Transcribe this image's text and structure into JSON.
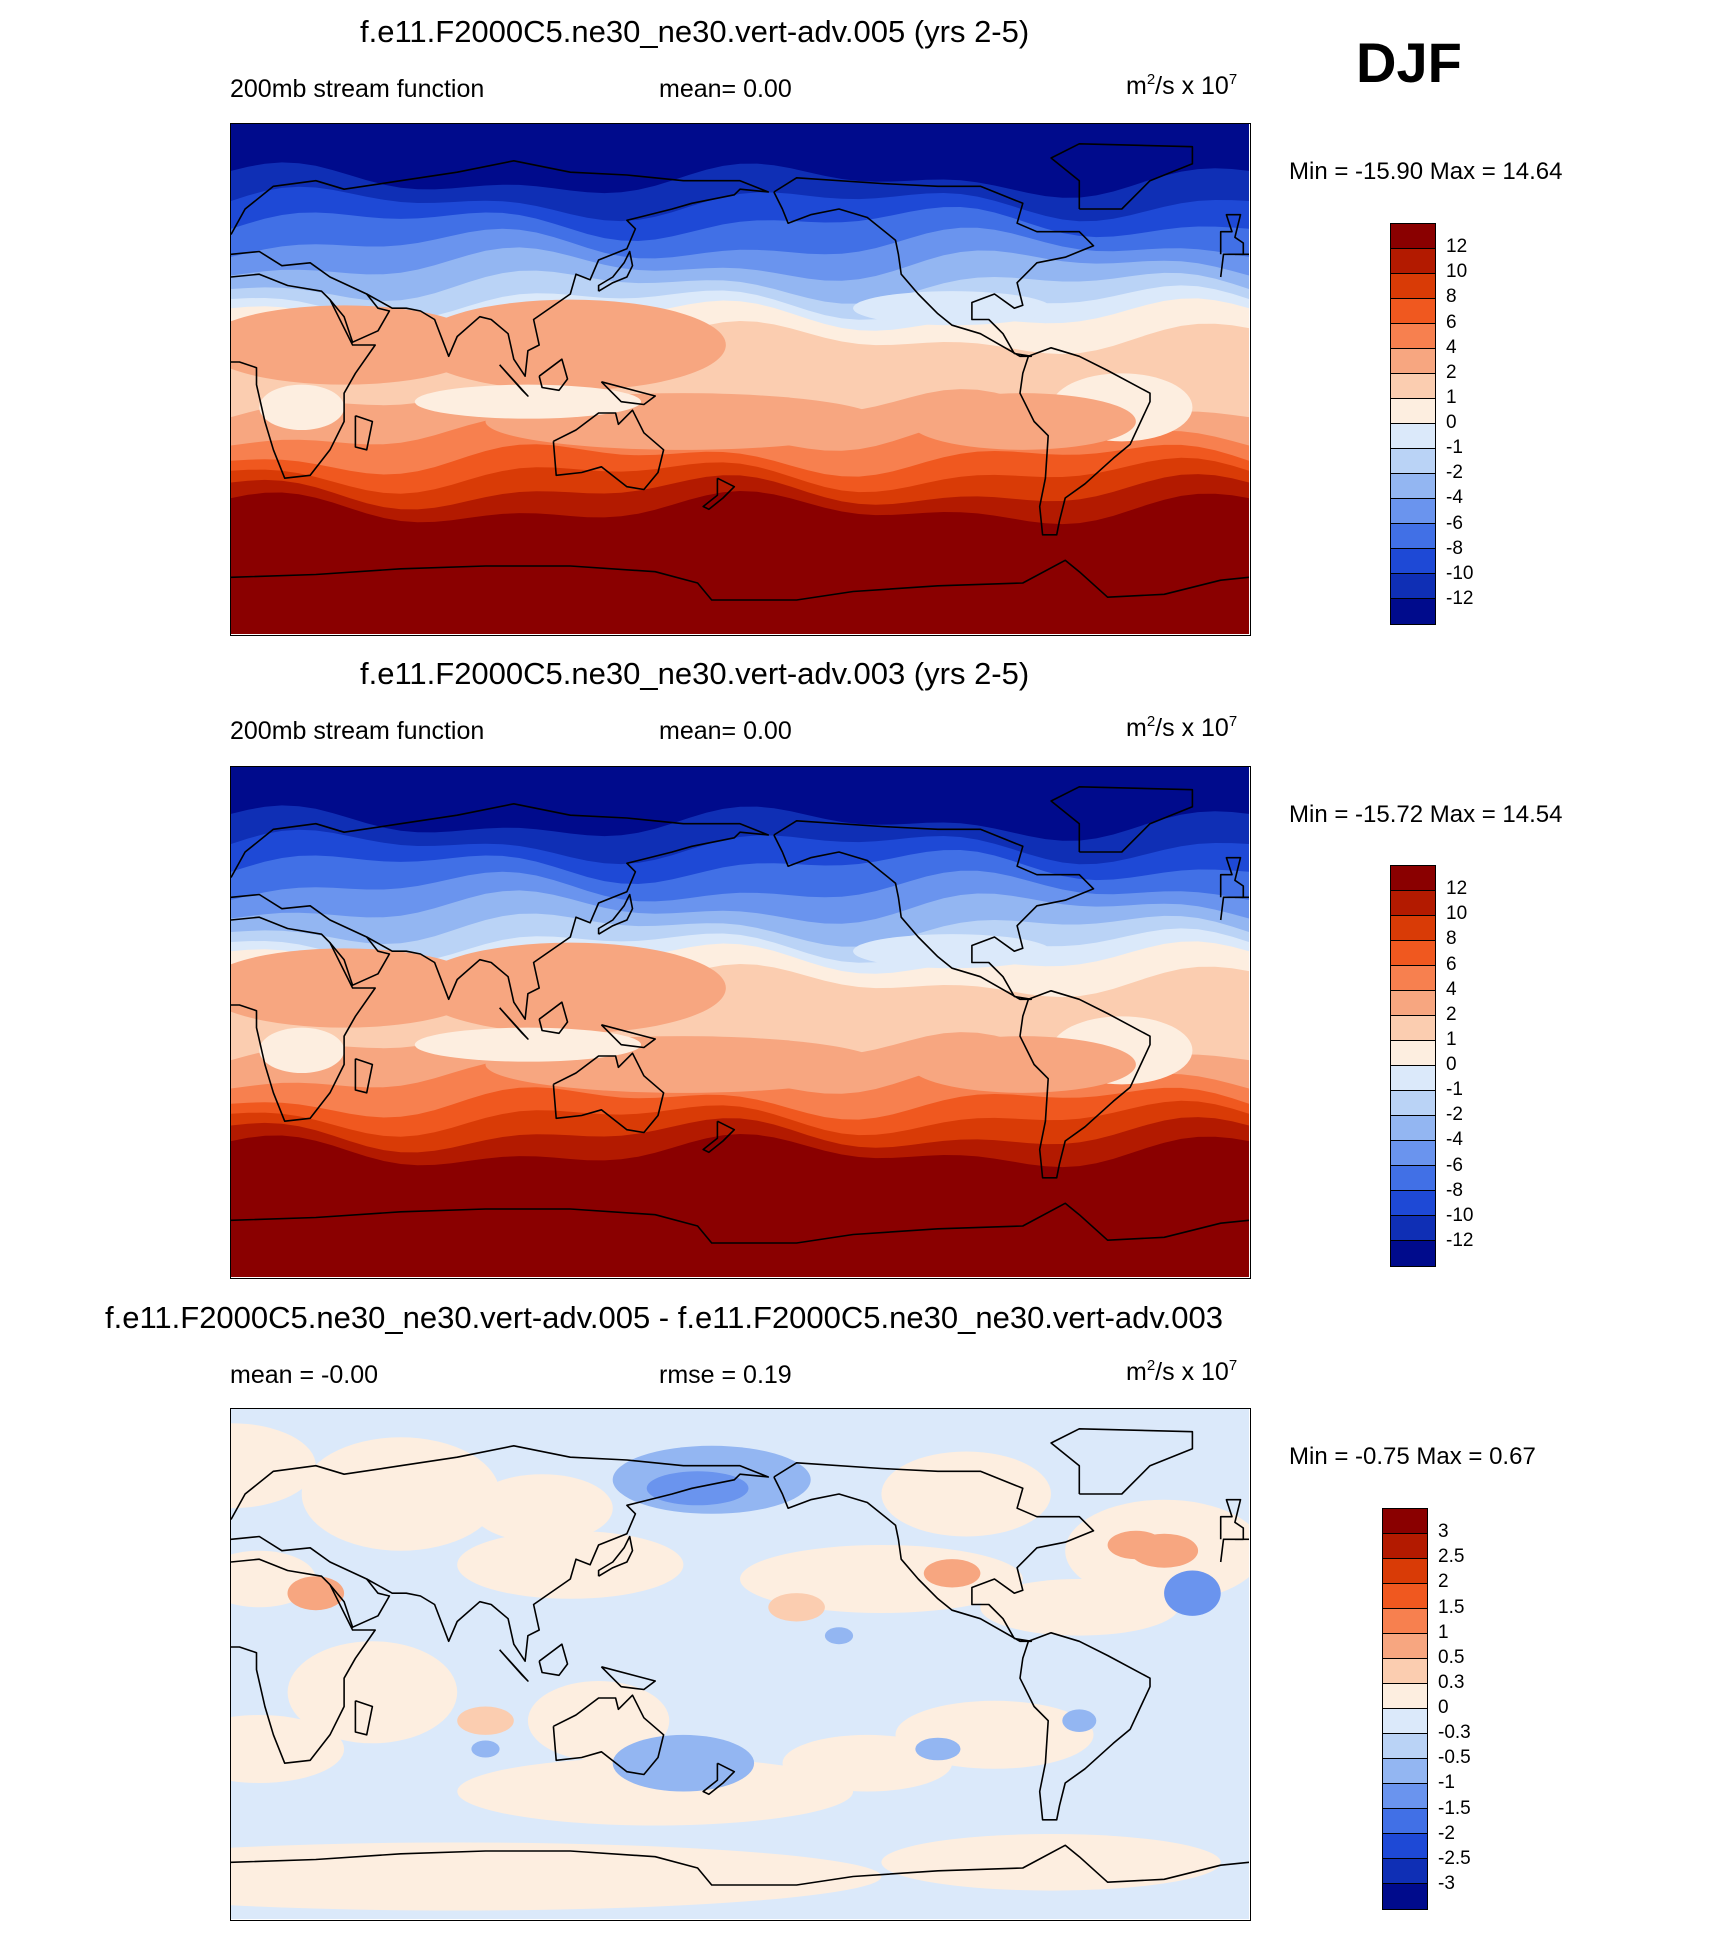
{
  "season": "DJF",
  "panels": [
    {
      "title": "f.e11.F2000C5.ne30_ne30.vert-adv.005 (yrs 2-5)",
      "left_label": "200mb stream function",
      "center_label": "mean=   0.00",
      "units": "m",
      "units_sup": "2",
      "units_tail": "/s x 10",
      "units_exp": "7",
      "minmax": "Min = -15.90 Max =  14.64",
      "colorbar_labels": [
        "12",
        "10",
        "8",
        "6",
        "4",
        "2",
        "1",
        "0",
        "-1",
        "-2",
        "-4",
        "-6",
        "-8",
        "-10",
        "-12"
      ],
      "colors": [
        "#8a0000",
        "#b31a00",
        "#d93b06",
        "#f0581f",
        "#f7804f",
        "#f7a680",
        "#fbcdb0",
        "#fdeee0",
        "#dbe9fa",
        "#bad3f6",
        "#93b6f2",
        "#6a94ee",
        "#4170e6",
        "#1e49d6",
        "#0f2fb5",
        "#000b8c"
      ]
    },
    {
      "title": "f.e11.F2000C5.ne30_ne30.vert-adv.003 (yrs 2-5)",
      "left_label": "200mb stream function",
      "center_label": "mean=   0.00",
      "units": "m",
      "units_sup": "2",
      "units_tail": "/s x 10",
      "units_exp": "7",
      "minmax": "Min = -15.72 Max =  14.54",
      "colorbar_labels": [
        "12",
        "10",
        "8",
        "6",
        "4",
        "2",
        "1",
        "0",
        "-1",
        "-2",
        "-4",
        "-6",
        "-8",
        "-10",
        "-12"
      ],
      "colors": [
        "#8a0000",
        "#b31a00",
        "#d93b06",
        "#f0581f",
        "#f7804f",
        "#f7a680",
        "#fbcdb0",
        "#fdeee0",
        "#dbe9fa",
        "#bad3f6",
        "#93b6f2",
        "#6a94ee",
        "#4170e6",
        "#1e49d6",
        "#0f2fb5",
        "#000b8c"
      ]
    },
    {
      "title": "f.e11.F2000C5.ne30_ne30.vert-adv.005 - f.e11.F2000C5.ne30_ne30.vert-adv.003",
      "left_label": "mean =  -0.00",
      "center_label": "rmse =   0.19",
      "units": "m",
      "units_sup": "2",
      "units_tail": "/s x 10",
      "units_exp": "7",
      "minmax": "Min =  -0.75 Max =   0.67",
      "colorbar_labels": [
        "3",
        "2.5",
        "2",
        "1.5",
        "1",
        "0.5",
        "0.3",
        "0",
        "-0.3",
        "-0.5",
        "-1",
        "-1.5",
        "-2",
        "-2.5",
        "-3"
      ],
      "colors": [
        "#8a0000",
        "#b31a00",
        "#d93b06",
        "#f0581f",
        "#f7804f",
        "#f7a680",
        "#fbcdb0",
        "#fdeee0",
        "#dbe9fa",
        "#bad3f6",
        "#93b6f2",
        "#6a94ee",
        "#4170e6",
        "#1e49d6",
        "#0f2fb5",
        "#000b8c"
      ]
    }
  ],
  "chart_data": [
    {
      "type": "heatmap",
      "title": "f.e11.F2000C5.ne30_ne30.vert-adv.005 (yrs 2-5)",
      "subtitle": "200mb stream function",
      "mean": 0.0,
      "min": -15.9,
      "max": 14.64,
      "units": "m2/s x 10^7",
      "levels": [
        -12,
        -10,
        -8,
        -6,
        -4,
        -2,
        -1,
        0,
        1,
        2,
        4,
        6,
        8,
        10,
        12
      ],
      "zonal_profile": {
        "lat": [
          80,
          60,
          40,
          20,
          0,
          -20,
          -40,
          -60,
          -80
        ],
        "value": [
          -14,
          -11,
          -6,
          0.5,
          2,
          4,
          8,
          13,
          14
        ]
      }
    },
    {
      "type": "heatmap",
      "title": "f.e11.F2000C5.ne30_ne30.vert-adv.003 (yrs 2-5)",
      "subtitle": "200mb stream function",
      "mean": 0.0,
      "min": -15.72,
      "max": 14.54,
      "units": "m2/s x 10^7",
      "levels": [
        -12,
        -10,
        -8,
        -6,
        -4,
        -2,
        -1,
        0,
        1,
        2,
        4,
        6,
        8,
        10,
        12
      ],
      "zonal_profile": {
        "lat": [
          80,
          60,
          40,
          20,
          0,
          -20,
          -40,
          -60,
          -80
        ],
        "value": [
          -14,
          -11,
          -6,
          0.5,
          2,
          4,
          8,
          13,
          14
        ]
      }
    },
    {
      "type": "heatmap",
      "title": "f.e11.F2000C5.ne30_ne30.vert-adv.005 - f.e11.F2000C5.ne30_ne30.vert-adv.003",
      "mean": -0.0,
      "rmse": 0.19,
      "min": -0.75,
      "max": 0.67,
      "units": "m2/s x 10^7",
      "levels": [
        -3,
        -2.5,
        -2,
        -1.5,
        -1,
        -0.5,
        -0.3,
        0,
        0.3,
        0.5,
        1,
        1.5,
        2,
        2.5,
        3
      ]
    }
  ]
}
